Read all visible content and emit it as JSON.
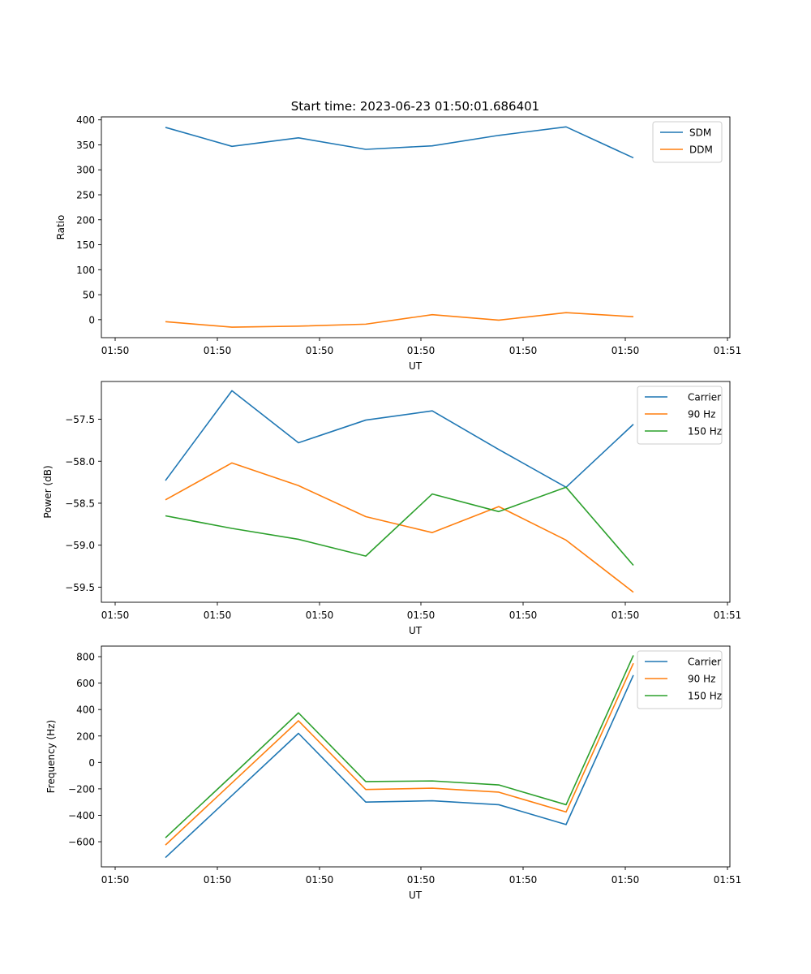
{
  "figure_title": "Start time: 2023-06-23 01:50:01.686401",
  "colors": {
    "blue": "#1f77b4",
    "orange": "#ff7f0e",
    "green": "#2ca02c"
  },
  "chart_data": [
    {
      "type": "line",
      "title": "Start time: 2023-06-23 01:50:01.686401",
      "xlabel": "UT",
      "ylabel": "Ratio",
      "x_tick_labels": [
        "01:50",
        "01:50",
        "01:50",
        "01:50",
        "01:50",
        "01:50",
        "01:50",
        "01:51"
      ],
      "yticks": [
        0,
        50,
        100,
        150,
        200,
        250,
        300,
        350,
        400
      ],
      "ylim": [
        -36,
        406
      ],
      "legend": "top-right",
      "grid": false,
      "series": [
        {
          "name": "SDM",
          "color": "#1f77b4",
          "values": [
            385,
            347,
            364,
            341,
            348,
            369,
            386,
            324
          ]
        },
        {
          "name": "DDM",
          "color": "#ff7f0e",
          "values": [
            -4,
            -15,
            -13,
            -9,
            10,
            -1,
            14,
            6
          ]
        }
      ]
    },
    {
      "type": "line",
      "title": "",
      "xlabel": "UT",
      "ylabel": "Power (dB)",
      "x_tick_labels": [
        "01:50",
        "01:50",
        "01:50",
        "01:50",
        "01:50",
        "01:50",
        "01:50",
        "01:51"
      ],
      "yticks": [
        -59.5,
        -59.0,
        -58.5,
        -58.0,
        -57.5
      ],
      "ytick_labels": [
        "−59.5",
        "−59.0",
        "−58.5",
        "−58.0",
        "−57.5"
      ],
      "ylim": [
        -59.68,
        -57.05
      ],
      "legend": "top-right",
      "grid": false,
      "series": [
        {
          "name": "Carrier",
          "color": "#1f77b4",
          "values": [
            -58.23,
            -57.16,
            -57.78,
            -57.51,
            -57.4,
            -57.86,
            -58.31,
            -57.56
          ]
        },
        {
          "name": "90 Hz",
          "color": "#ff7f0e",
          "values": [
            -58.46,
            -58.02,
            -58.29,
            -58.66,
            -58.85,
            -58.54,
            -58.94,
            -59.56
          ]
        },
        {
          "name": "150 Hz",
          "color": "#2ca02c",
          "values": [
            -58.65,
            -58.8,
            -58.93,
            -59.13,
            -58.39,
            -58.6,
            -58.31,
            -59.24
          ]
        }
      ]
    },
    {
      "type": "line",
      "title": "",
      "xlabel": "UT",
      "ylabel": "Frequency (Hz)",
      "x_tick_labels": [
        "01:50",
        "01:50",
        "01:50",
        "01:50",
        "01:50",
        "01:50",
        "01:50",
        "01:51"
      ],
      "yticks": [
        -600,
        -400,
        -200,
        0,
        200,
        400,
        600,
        800
      ],
      "ytick_labels": [
        "−600",
        "−400",
        "−200",
        "0",
        "200",
        "400",
        "600",
        "800"
      ],
      "ylim": [
        -790,
        880
      ],
      "legend": "top-right",
      "grid": false,
      "series": [
        {
          "name": "Carrier",
          "color": "#1f77b4",
          "values": [
            -720,
            -250,
            220,
            -300,
            -290,
            -320,
            -470,
            660
          ]
        },
        {
          "name": "90 Hz",
          "color": "#ff7f0e",
          "values": [
            -625,
            -155,
            315,
            -205,
            -195,
            -225,
            -375,
            750
          ]
        },
        {
          "name": "150 Hz",
          "color": "#2ca02c",
          "values": [
            -570,
            -100,
            375,
            -145,
            -140,
            -170,
            -320,
            810
          ]
        }
      ]
    }
  ]
}
